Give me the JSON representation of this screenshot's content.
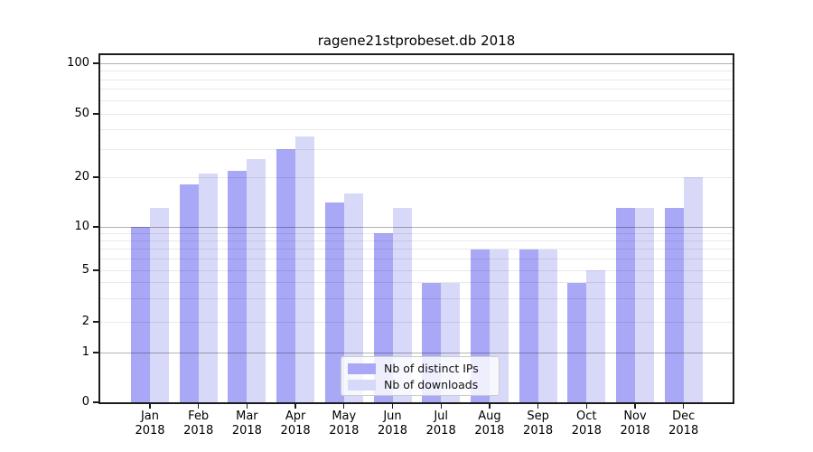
{
  "title": "ragene21stprobeset.db 2018",
  "chart_data": {
    "type": "bar",
    "title": "ragene21stprobeset.db 2018",
    "categories": [
      "Jan",
      "Feb",
      "Mar",
      "Apr",
      "May",
      "Jun",
      "Jul",
      "Aug",
      "Sep",
      "Oct",
      "Nov",
      "Dec"
    ],
    "category_year": "2018",
    "series": [
      {
        "name": "Nb of distinct IPs",
        "color": "#a8a8f7",
        "values": [
          10,
          18,
          22,
          30,
          14,
          9,
          4,
          7,
          7,
          4,
          13,
          13
        ]
      },
      {
        "name": "Nb of downloads",
        "color": "#d8d8f9",
        "values": [
          13,
          21,
          26,
          36,
          16,
          13,
          4,
          7,
          7,
          5,
          13,
          20
        ]
      }
    ],
    "xlabel": "",
    "ylabel": "",
    "yscale": "log-like (linear segment between 0 and 1)",
    "ylim": [
      0,
      112
    ],
    "yticks": [
      0,
      1,
      2,
      5,
      10,
      20,
      50,
      100
    ],
    "gridlines_major": [
      1,
      10,
      100
    ],
    "gridlines_minor": [
      2,
      3,
      4,
      5,
      6,
      7,
      8,
      9,
      20,
      30,
      40,
      50,
      60,
      70,
      80,
      90
    ],
    "grid": true,
    "legend_position": "lower center",
    "bar_group": "two bars per month, distinct-IPs bar left of month tick, downloads bar right"
  }
}
